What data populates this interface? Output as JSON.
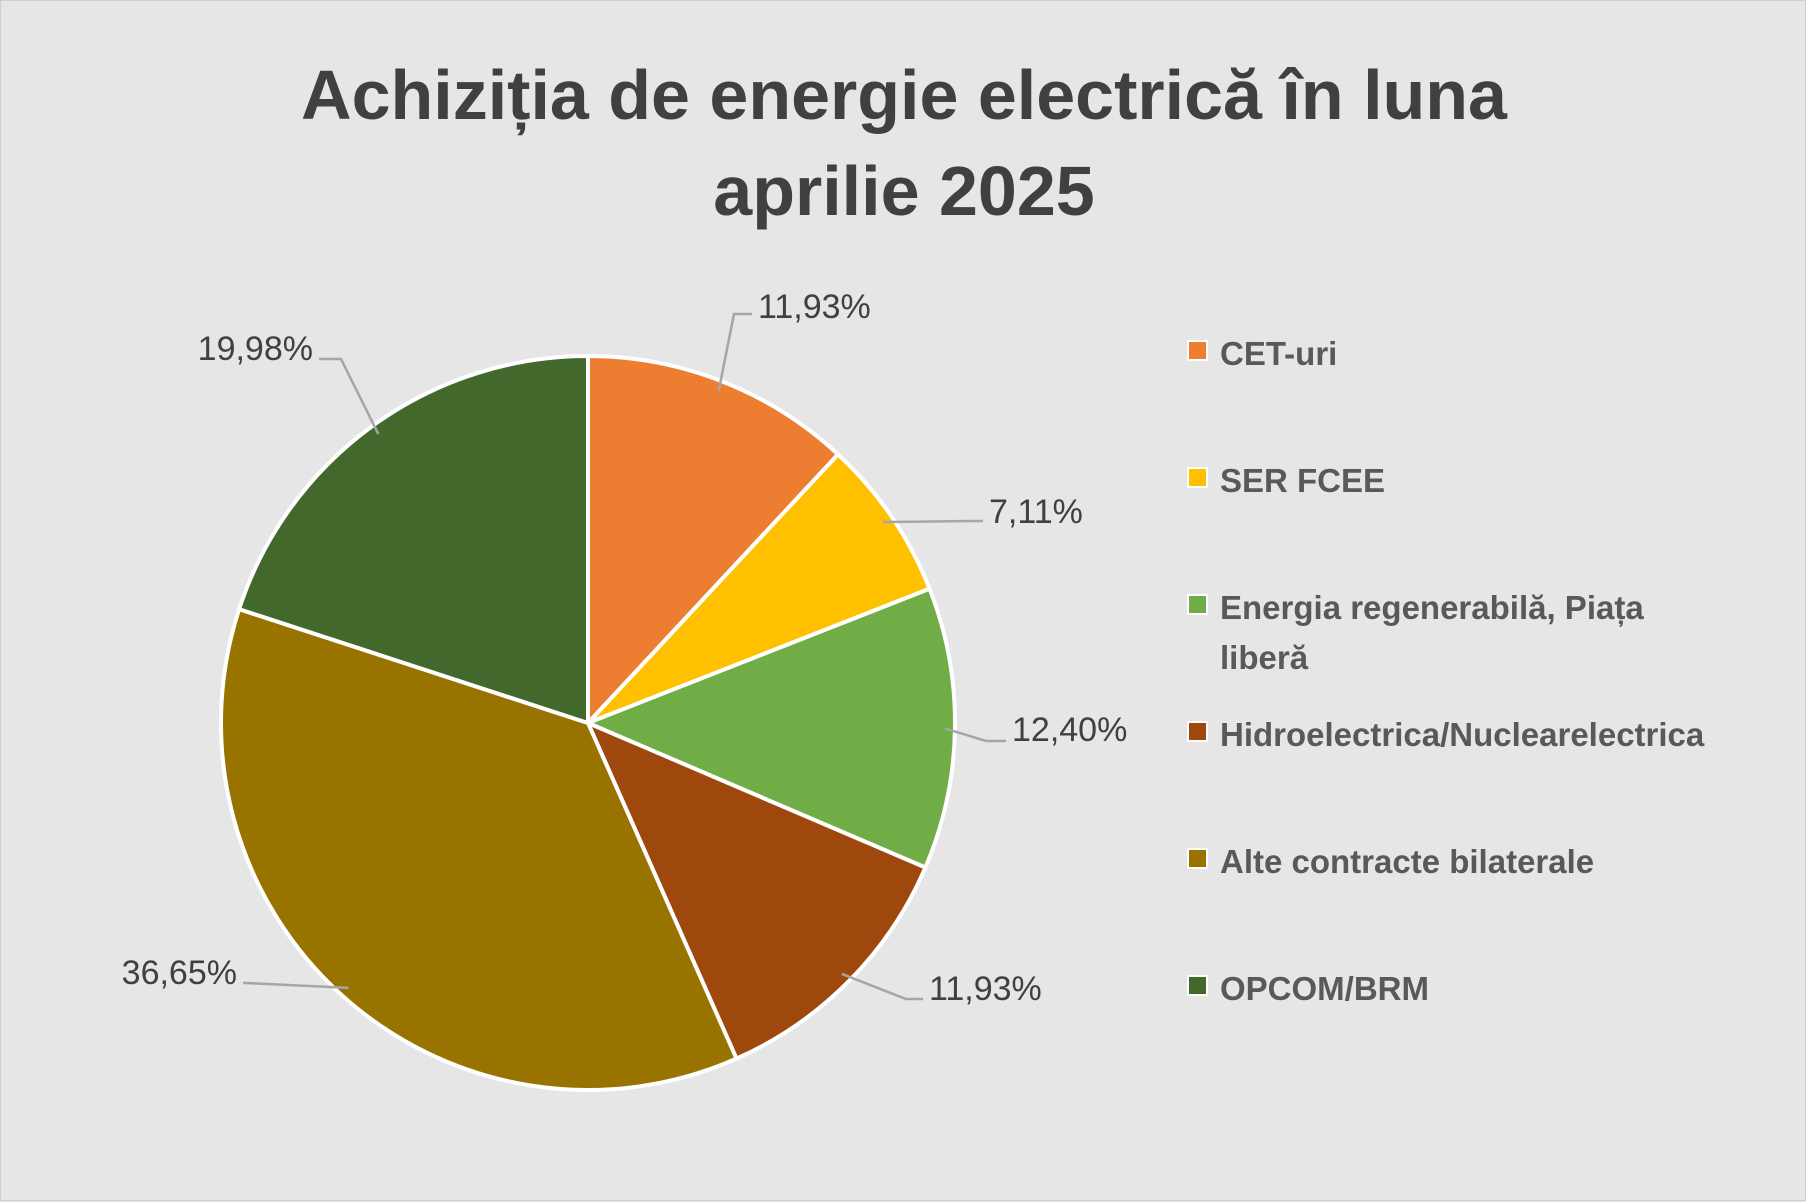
{
  "chart_data": {
    "type": "pie",
    "title": "Achiziția de energie electrică în luna\naprilie 2025",
    "legend_position": "right",
    "slices": [
      {
        "label": "CET-uri",
        "value": 11.93,
        "display": "11,93%",
        "color": "#ed7d31"
      },
      {
        "label": "SER FCEE",
        "value": 7.11,
        "display": "7,11%",
        "color": "#ffc000"
      },
      {
        "label": "Energia regenerabilă, Piața liberă",
        "value": 12.4,
        "display": "12,40%",
        "color": "#70ad47"
      },
      {
        "label": "Hidroelectrica/Nuclearelectrica",
        "value": 11.93,
        "display": "11,93%",
        "color": "#9e480e"
      },
      {
        "label": "Alte contracte bilaterale",
        "value": 36.65,
        "display": "36,65%",
        "color": "#997300"
      },
      {
        "label": "OPCOM/BRM",
        "value": 19.98,
        "display": "19,98%",
        "color": "#43682b"
      }
    ]
  }
}
